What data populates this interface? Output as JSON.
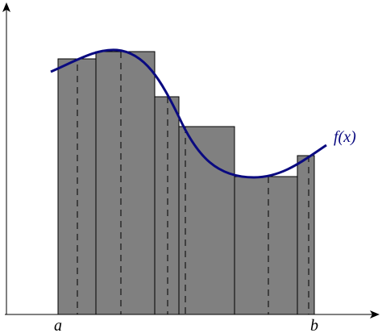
{
  "labels": {
    "a": "a",
    "b": "b",
    "function": "f(x)"
  }
}
